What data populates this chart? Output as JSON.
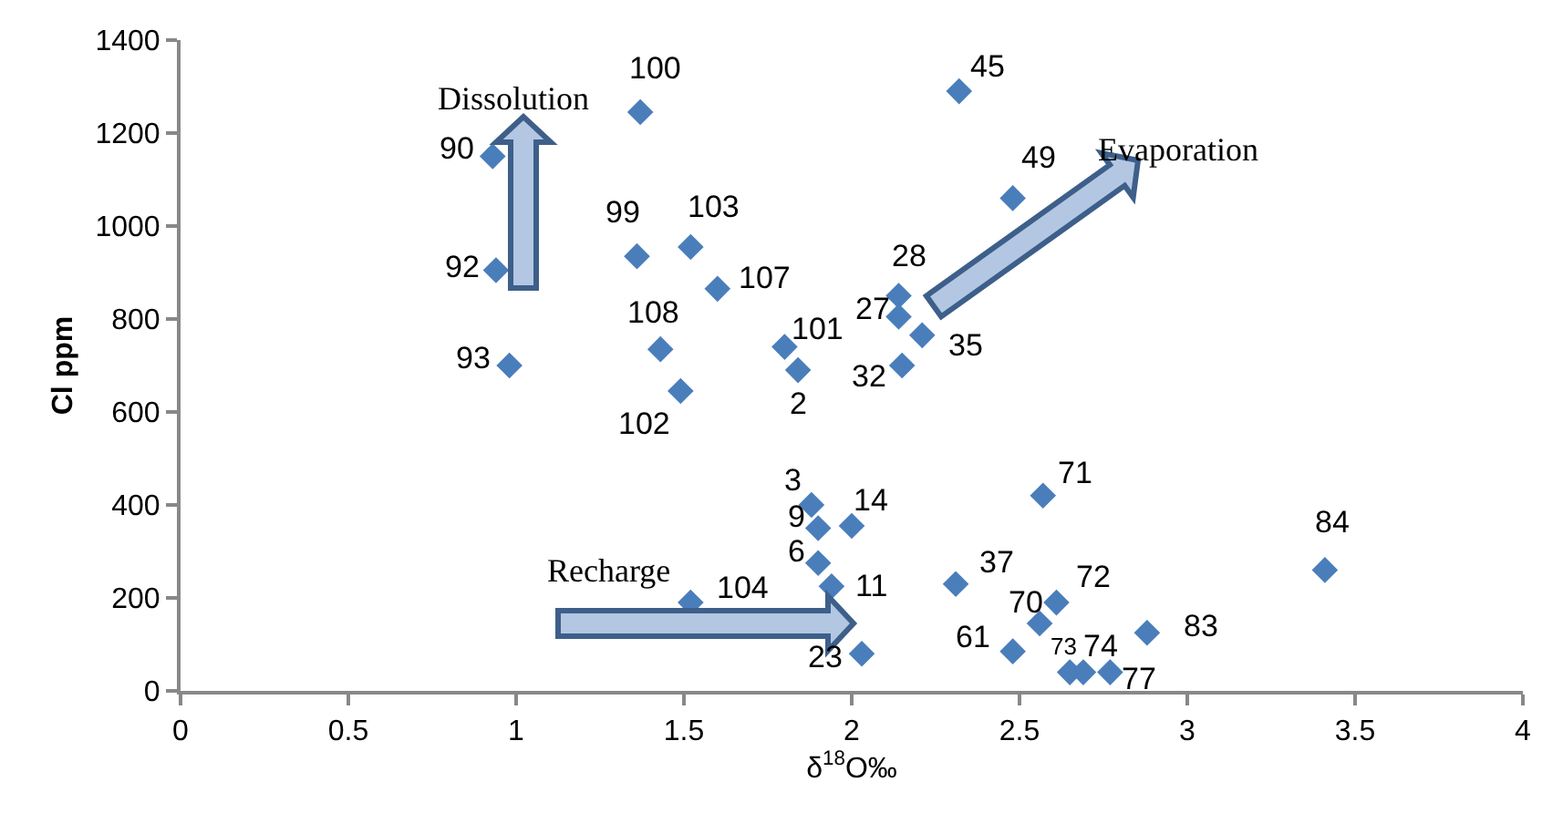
{
  "chart_data": {
    "type": "scatter",
    "xlabel": "δ$^{18}$O‰",
    "ylabel": "Cl ppm",
    "x": [
      1.37,
      2.32,
      0.93,
      2.48,
      0.94,
      1.36,
      1.52,
      1.6,
      2.14,
      2.14,
      2.21,
      1.43,
      1.8,
      0.98,
      1.84,
      2.15,
      1.49,
      1.88,
      2.0,
      1.9,
      1.9,
      1.52,
      1.94,
      2.03,
      2.31,
      2.57,
      2.61,
      2.56,
      2.48,
      2.88,
      2.65,
      2.69,
      2.77,
      3.41
    ],
    "series": [
      {
        "color": "#4a7ebb",
        "values": [
          1245,
          1290,
          1150,
          1060,
          905,
          935,
          955,
          865,
          850,
          805,
          765,
          735,
          740,
          700,
          690,
          700,
          645,
          400,
          355,
          350,
          275,
          190,
          225,
          80,
          230,
          420,
          190,
          145,
          85,
          125,
          40,
          40,
          40,
          260
        ]
      }
    ],
    "annotations": [
      {
        "text": "100",
        "x": 1.37,
        "y": 1245
      },
      {
        "text": "45",
        "x": 2.32,
        "y": 1290
      },
      {
        "text": "90",
        "x": 0.93,
        "y": 1150
      },
      {
        "text": "49",
        "x": 2.48,
        "y": 1060
      },
      {
        "text": "92",
        "x": 0.94,
        "y": 905
      },
      {
        "text": "99",
        "x": 1.36,
        "y": 935
      },
      {
        "text": "103",
        "x": 1.52,
        "y": 955
      },
      {
        "text": "107",
        "x": 1.6,
        "y": 865
      },
      {
        "text": "28",
        "x": 2.14,
        "y": 850
      },
      {
        "text": "27",
        "x": 2.14,
        "y": 805
      },
      {
        "text": "35",
        "x": 2.21,
        "y": 765
      },
      {
        "text": "108",
        "x": 1.43,
        "y": 735
      },
      {
        "text": "101",
        "x": 1.8,
        "y": 740
      },
      {
        "text": "93",
        "x": 0.98,
        "y": 700
      },
      {
        "text": "2",
        "x": 1.84,
        "y": 690
      },
      {
        "text": "32",
        "x": 2.15,
        "y": 700
      },
      {
        "text": "102",
        "x": 1.49,
        "y": 645
      },
      {
        "text": "3",
        "x": 1.88,
        "y": 400
      },
      {
        "text": "14",
        "x": 2.0,
        "y": 355
      },
      {
        "text": "9",
        "x": 1.9,
        "y": 350
      },
      {
        "text": "6",
        "x": 1.9,
        "y": 275
      },
      {
        "text": "104",
        "x": 1.52,
        "y": 190
      },
      {
        "text": "11",
        "x": 1.94,
        "y": 225
      },
      {
        "text": "23",
        "x": 2.03,
        "y": 80
      },
      {
        "text": "37",
        "x": 2.31,
        "y": 230
      },
      {
        "text": "71",
        "x": 2.57,
        "y": 420
      },
      {
        "text": "72",
        "x": 2.61,
        "y": 190
      },
      {
        "text": "70",
        "x": 2.56,
        "y": 145
      },
      {
        "text": "61",
        "x": 2.48,
        "y": 85
      },
      {
        "text": "83",
        "x": 2.88,
        "y": 125
      },
      {
        "text": "73",
        "x": 2.65,
        "y": 40
      },
      {
        "text": "74",
        "x": 2.69,
        "y": 40
      },
      {
        "text": "77",
        "x": 2.77,
        "y": 40
      },
      {
        "text": "84",
        "x": 3.41,
        "y": 260
      },
      "Dissolution",
      "Evaporation",
      "Recharge"
    ],
    "xlim": [
      0,
      4
    ],
    "xticks": [
      0,
      0.5,
      1,
      1.5,
      2,
      2.5,
      3,
      3.5,
      4
    ],
    "ylim": [
      0,
      1400
    ],
    "yticks": [
      0,
      200,
      400,
      600,
      800,
      1000,
      1200,
      1400
    ],
    "marker": "diamond"
  }
}
